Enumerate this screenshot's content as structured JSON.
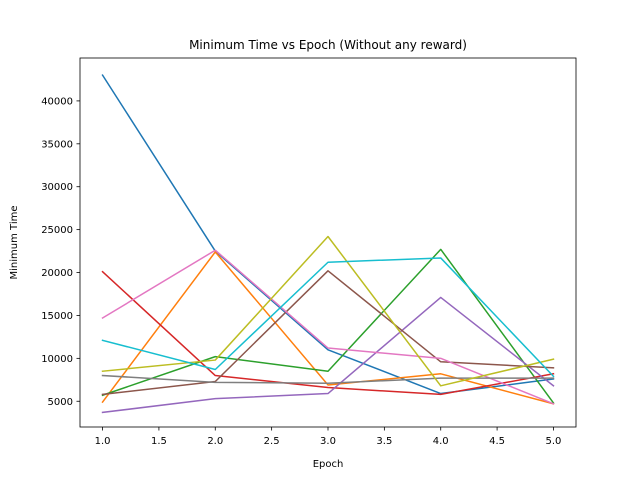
{
  "chart_data": {
    "type": "line",
    "title": "Minimum Time vs Epoch (Without any reward)",
    "xlabel": "Epoch",
    "ylabel": "Minimum Time",
    "xlim": [
      0.8,
      5.2
    ],
    "ylim": [
      2000,
      45000
    ],
    "x_ticks": [
      1.0,
      1.5,
      2.0,
      2.5,
      3.0,
      3.5,
      4.0,
      4.5,
      5.0
    ],
    "x_tick_labels": [
      "1.0",
      "1.5",
      "2.0",
      "2.5",
      "3.0",
      "3.5",
      "4.0",
      "4.5",
      "5.0"
    ],
    "y_ticks": [
      5000,
      10000,
      15000,
      20000,
      25000,
      30000,
      35000,
      40000
    ],
    "y_tick_labels": [
      "5000",
      "10000",
      "15000",
      "20000",
      "25000",
      "30000",
      "35000",
      "40000"
    ],
    "grid": false,
    "x": [
      1,
      2,
      3,
      4,
      5
    ],
    "series": [
      {
        "color": "#1f77b4",
        "values": [
          43000,
          22500,
          11000,
          5900,
          7600
        ]
      },
      {
        "color": "#ff7f0e",
        "values": [
          4900,
          22400,
          6900,
          8200,
          4700
        ]
      },
      {
        "color": "#2ca02c",
        "values": [
          5700,
          10200,
          8500,
          22700,
          4800
        ]
      },
      {
        "color": "#d62728",
        "values": [
          20100,
          8000,
          6600,
          5800,
          8200
        ]
      },
      {
        "color": "#9467bd",
        "values": [
          3700,
          5300,
          5900,
          17100,
          6800
        ]
      },
      {
        "color": "#8c564b",
        "values": [
          5800,
          7300,
          20200,
          9600,
          8900
        ]
      },
      {
        "color": "#e377c2",
        "values": [
          14700,
          22600,
          11200,
          10000,
          4700
        ]
      },
      {
        "color": "#7f7f7f",
        "values": [
          8000,
          7200,
          7100,
          7700,
          7700
        ]
      },
      {
        "color": "#bcbd22",
        "values": [
          8500,
          9800,
          24200,
          6800,
          9900
        ]
      },
      {
        "color": "#17becf",
        "values": [
          12100,
          8700,
          21200,
          21700,
          7900
        ]
      }
    ]
  }
}
